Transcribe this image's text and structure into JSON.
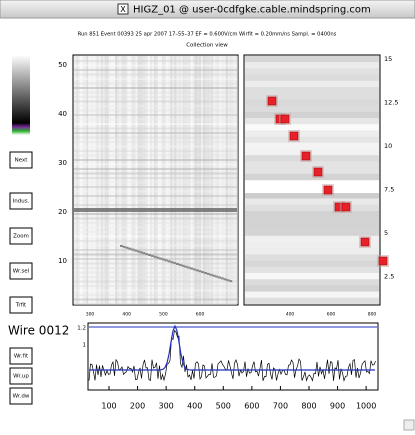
{
  "window": {
    "title": "HIGZ_01 @ user-0cdfgke.cable.mindspring.com"
  },
  "header": {
    "info": "Run 851   Event 00393   25 apr 2007   17–55–37    EF = 0.600V/cm   Wirfit = 0.20mm/ns   Sampl. = 0400ns",
    "subtitle": "Collection view"
  },
  "buttons": [
    "Next",
    "Indus.",
    "Zoom",
    "Wr.sel",
    "Trfit"
  ],
  "wire": {
    "label": "Wire 0012",
    "buttons": [
      "Wr.fit",
      "Wr.up",
      "Wr.dw"
    ]
  },
  "left_view": {
    "yticks": [
      10,
      20,
      30,
      40,
      50
    ],
    "xticks": [
      300,
      400,
      500,
      600
    ]
  },
  "right_view": {
    "yticks": [
      2.5,
      5,
      7.5,
      10,
      12.5,
      15
    ],
    "xticks": [
      400,
      600,
      800
    ]
  },
  "waveform": {
    "yticks": [
      1,
      1.2
    ],
    "xticks": [
      100,
      200,
      300,
      400,
      500,
      600,
      700,
      800,
      900,
      1000
    ]
  }
}
